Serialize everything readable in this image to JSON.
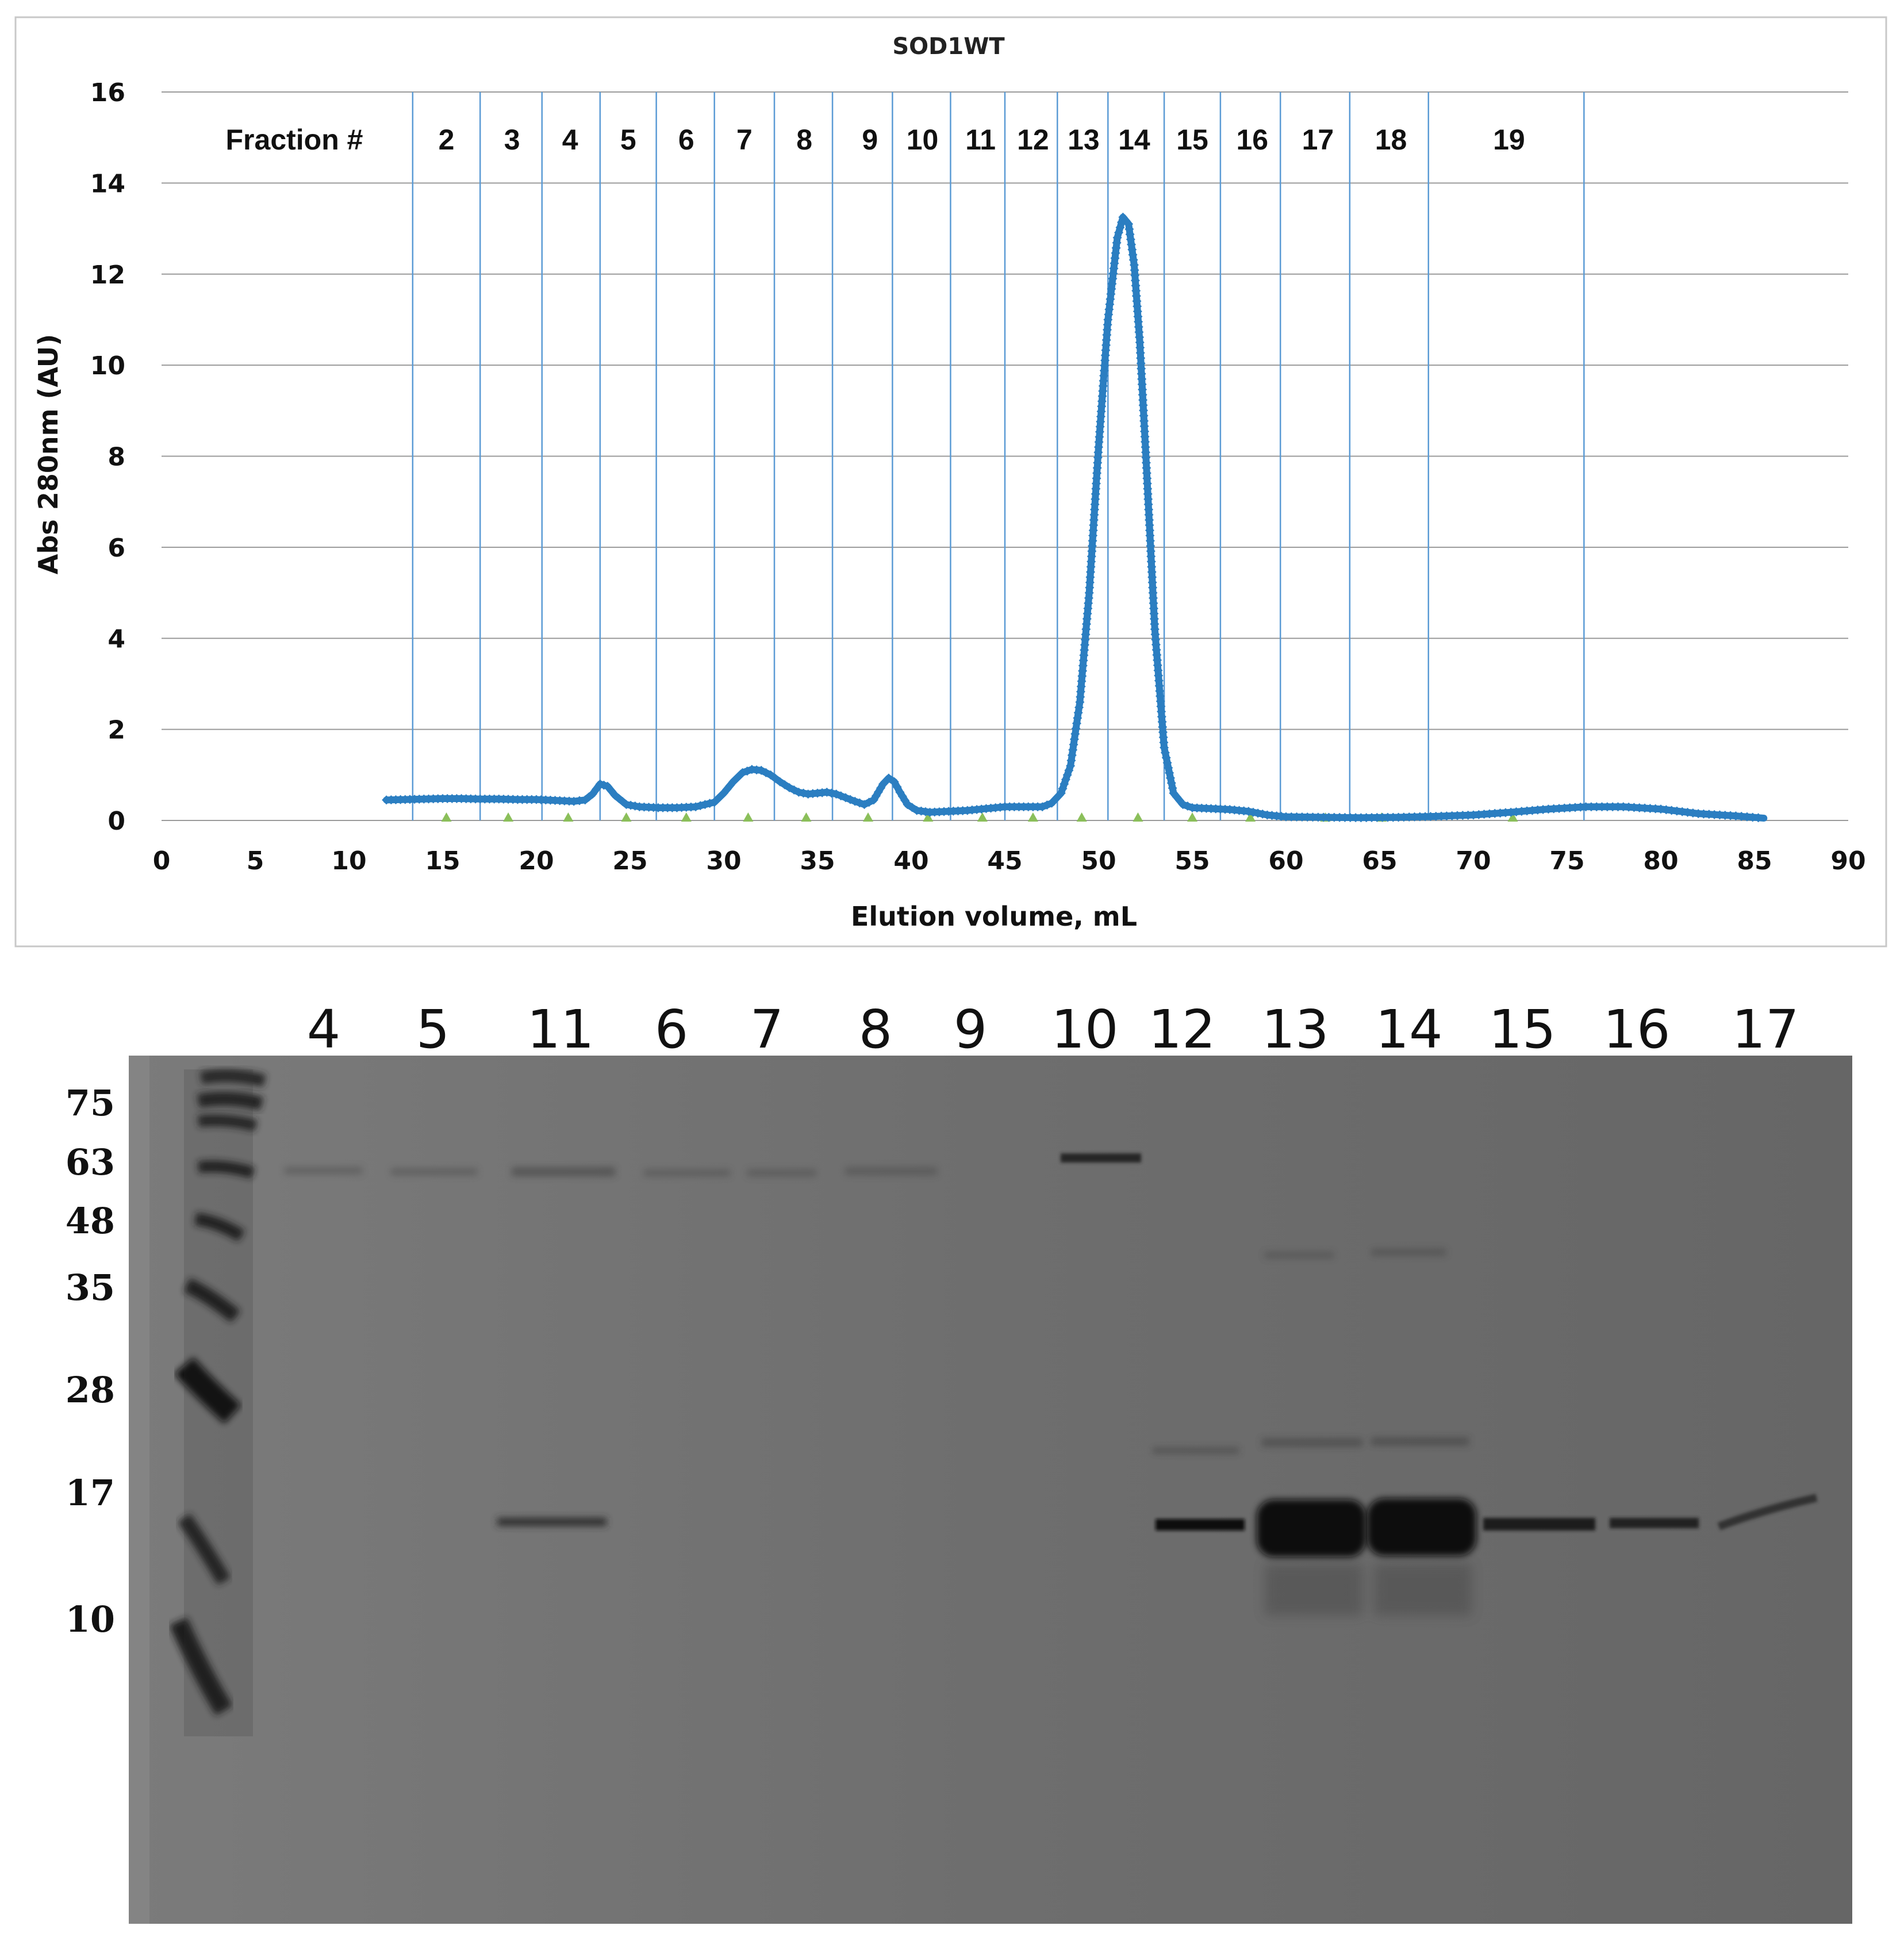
{
  "colors": {
    "trace": "#2b7ec1",
    "fraction_line": "#5b9bd5",
    "gridline": "#9a9a9a",
    "marker": "#8bbf5a",
    "gel_background": "#6d6d6d",
    "band": "#121212"
  },
  "chart_data": [
    {
      "type": "line",
      "title": "SOD1WT",
      "xlabel": "Elution volume, mL",
      "ylabel": "Abs 280nm (AU)",
      "xlim": [
        0,
        90
      ],
      "ylim": [
        0,
        16
      ],
      "xticks": [
        0,
        5,
        10,
        15,
        20,
        25,
        30,
        35,
        40,
        45,
        50,
        55,
        60,
        65,
        70,
        75,
        80,
        85,
        90
      ],
      "yticks": [
        0,
        2,
        4,
        6,
        8,
        10,
        12,
        14,
        16
      ],
      "grid": "horizontal",
      "fraction_header": "Fraction #",
      "fraction_boundaries": [
        13.4,
        17.0,
        20.3,
        23.4,
        26.4,
        29.5,
        32.7,
        35.8,
        39.0,
        42.1,
        45.0,
        47.8,
        50.5,
        53.5,
        56.5,
        59.7,
        63.4,
        67.6,
        75.9
      ],
      "fractions": [
        {
          "label": "2",
          "x": 15.2
        },
        {
          "label": "3",
          "x": 18.7
        },
        {
          "label": "4",
          "x": 21.8
        },
        {
          "label": "5",
          "x": 24.9
        },
        {
          "label": "6",
          "x": 28.0
        },
        {
          "label": "7",
          "x": 31.1
        },
        {
          "label": "8",
          "x": 34.3
        },
        {
          "label": "9",
          "x": 37.8
        },
        {
          "label": "10",
          "x": 40.6
        },
        {
          "label": "11",
          "x": 43.7
        },
        {
          "label": "12",
          "x": 46.5
        },
        {
          "label": "13",
          "x": 49.2
        },
        {
          "label": "14",
          "x": 51.9
        },
        {
          "label": "15",
          "x": 55.0
        },
        {
          "label": "16",
          "x": 58.2
        },
        {
          "label": "17",
          "x": 61.7
        },
        {
          "label": "18",
          "x": 65.6
        },
        {
          "label": "19",
          "x": 71.9
        }
      ],
      "fraction_markers_x": [
        15.2,
        18.5,
        21.7,
        24.8,
        28.0,
        31.3,
        34.4,
        37.7,
        40.9,
        43.8,
        46.5,
        49.1,
        52.1,
        55.0,
        58.1,
        62.1,
        65.1,
        72.1
      ],
      "series": [
        {
          "x": [
            12.0,
            13.0,
            14.0,
            15.0,
            16.0,
            17.0,
            18.0,
            19.0,
            20.0,
            21.0,
            22.0,
            22.6,
            23.0,
            23.4,
            23.8,
            24.2,
            24.8,
            25.5,
            26.5,
            27.5,
            28.5,
            29.5,
            30.0,
            30.5,
            31.0,
            31.5,
            32.0,
            32.5,
            33.0,
            33.5,
            34.0,
            34.5,
            35.0,
            35.5,
            36.0,
            36.5,
            37.0,
            37.5,
            38.0,
            38.5,
            38.8,
            39.1,
            39.4,
            39.8,
            40.3,
            41.0,
            42.0,
            43.0,
            44.0,
            45.0,
            46.0,
            47.0,
            47.5,
            48.0,
            48.5,
            49.0,
            49.5,
            50.0,
            50.5,
            51.0,
            51.3,
            51.6,
            51.9,
            52.2,
            52.5,
            53.0,
            53.5,
            54.0,
            54.5,
            55.0,
            56.0,
            57.0,
            58.0,
            59.0,
            60.0,
            62.0,
            64.0,
            66.0,
            68.0,
            70.0,
            72.0,
            74.0,
            76.0,
            78.0,
            80.0,
            82.0,
            84.0,
            85.5
          ],
          "y": [
            0.45,
            0.46,
            0.47,
            0.48,
            0.48,
            0.47,
            0.47,
            0.46,
            0.46,
            0.44,
            0.42,
            0.45,
            0.58,
            0.8,
            0.75,
            0.55,
            0.35,
            0.3,
            0.28,
            0.28,
            0.3,
            0.4,
            0.6,
            0.85,
            1.05,
            1.12,
            1.1,
            1.0,
            0.85,
            0.72,
            0.62,
            0.58,
            0.6,
            0.62,
            0.58,
            0.5,
            0.42,
            0.35,
            0.45,
            0.8,
            0.93,
            0.85,
            0.62,
            0.35,
            0.22,
            0.18,
            0.2,
            0.22,
            0.26,
            0.3,
            0.3,
            0.3,
            0.38,
            0.6,
            1.2,
            2.6,
            5.0,
            8.2,
            11.0,
            12.8,
            13.25,
            13.1,
            12.2,
            10.5,
            8.2,
            4.2,
            1.6,
            0.6,
            0.35,
            0.28,
            0.26,
            0.24,
            0.2,
            0.12,
            0.08,
            0.07,
            0.06,
            0.07,
            0.09,
            0.12,
            0.18,
            0.25,
            0.3,
            0.3,
            0.25,
            0.15,
            0.1,
            0.05
          ]
        }
      ]
    },
    {
      "type": "gel",
      "lane_labels": [
        {
          "label": "4",
          "x": 563
        },
        {
          "label": "5",
          "x": 753
        },
        {
          "label": "11",
          "x": 975
        },
        {
          "label": "6",
          "x": 1168
        },
        {
          "label": "7",
          "x": 1334
        },
        {
          "label": "8",
          "x": 1523
        },
        {
          "label": "9",
          "x": 1688
        },
        {
          "label": "10",
          "x": 1887
        },
        {
          "label": "12",
          "x": 2056
        },
        {
          "label": "13",
          "x": 2253
        },
        {
          "label": "14",
          "x": 2451
        },
        {
          "label": "15",
          "x": 2648
        },
        {
          "label": "16",
          "x": 2847
        },
        {
          "label": "17",
          "x": 3071
        }
      ],
      "mw_markers": [
        {
          "label": "75",
          "y": 1940
        },
        {
          "label": "63",
          "y": 2043
        },
        {
          "label": "48",
          "y": 2145
        },
        {
          "label": "35",
          "y": 2261
        },
        {
          "label": "28",
          "y": 2439
        },
        {
          "label": "17",
          "y": 2618
        },
        {
          "label": "10",
          "y": 2838
        }
      ]
    }
  ]
}
